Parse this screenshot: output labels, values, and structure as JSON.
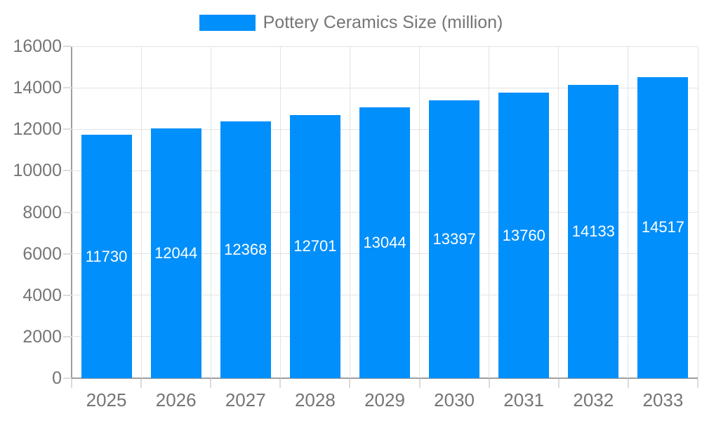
{
  "legend": {
    "label": "Pottery Ceramics Size (million)"
  },
  "chart_data": {
    "type": "bar",
    "title": "Pottery Ceramics Size (million)",
    "series_name": "Pottery Ceramics Size (million)",
    "categories": [
      "2025",
      "2026",
      "2027",
      "2028",
      "2029",
      "2030",
      "2031",
      "2032",
      "2033"
    ],
    "values": [
      11730,
      12044,
      12368,
      12701,
      13044,
      13397,
      13760,
      14133,
      14517
    ],
    "xlabel": "",
    "ylabel": "",
    "ylim": [
      0,
      16000
    ],
    "yticks": [
      0,
      2000,
      4000,
      6000,
      8000,
      10000,
      12000,
      14000,
      16000
    ],
    "grid": true,
    "legend_position": "top",
    "value_labels_shown": true,
    "colors": {
      "bar": "#008FFB",
      "value_label": "#FFFFFF",
      "axis_label": "#757575",
      "legend_label": "#757575",
      "gridline": "#E3E3E3",
      "axis_line": "#9E9E9E",
      "background": "#FFFFFF"
    }
  }
}
